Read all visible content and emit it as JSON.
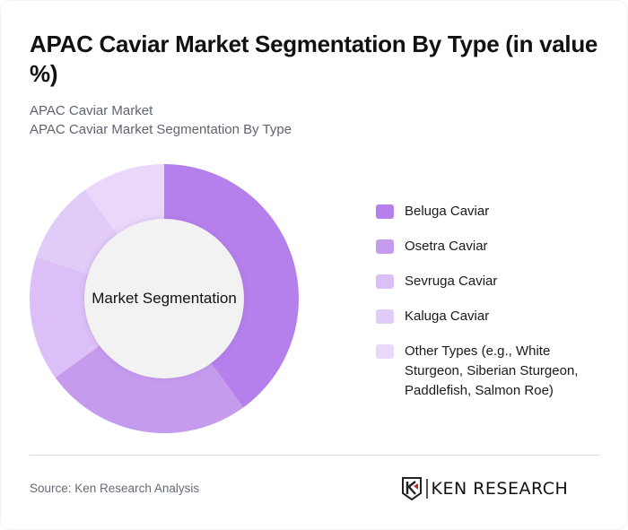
{
  "header": {
    "title": "APAC Caviar Market Segmentation By Type (in value %)",
    "subtitle_line1": "APAC Caviar Market",
    "subtitle_line2": "APAC Caviar Market Segmentation By Type"
  },
  "chart": {
    "center_label": "Market Segmentation"
  },
  "legend": {
    "items": [
      {
        "label": "Beluga Caviar",
        "color": "#b580eb"
      },
      {
        "label": "Osetra Caviar",
        "color": "#c59bee"
      },
      {
        "label": "Sevruga Caviar",
        "color": "#dbbff6"
      },
      {
        "label": "Kaluga Caviar",
        "color": "#e1cbf7"
      },
      {
        "label": "Other Types (e.g., White Sturgeon, Siberian Sturgeon, Paddlefish, Salmon Roe)",
        "color": "#e9d8fa"
      }
    ]
  },
  "footer": {
    "source": "Source: Ken Research Analysis",
    "logo_text": "KEN RESEARCH"
  },
  "chart_data": {
    "type": "pie",
    "variant": "donut",
    "title": "APAC Caviar Market Segmentation By Type (in value %)",
    "center_label": "Market Segmentation",
    "categories": [
      "Beluga Caviar",
      "Osetra Caviar",
      "Sevruga Caviar",
      "Kaluga Caviar",
      "Other Types (e.g., White Sturgeon, Siberian Sturgeon, Paddlefish, Salmon Roe)"
    ],
    "values": [
      40,
      25,
      15,
      10,
      10
    ],
    "colors": [
      "#b580eb",
      "#c59bee",
      "#dbbff6",
      "#e1cbf7",
      "#e9d8fa"
    ],
    "unit": "%",
    "start_angle": "12 o'clock, clockwise",
    "legend_position": "right"
  }
}
